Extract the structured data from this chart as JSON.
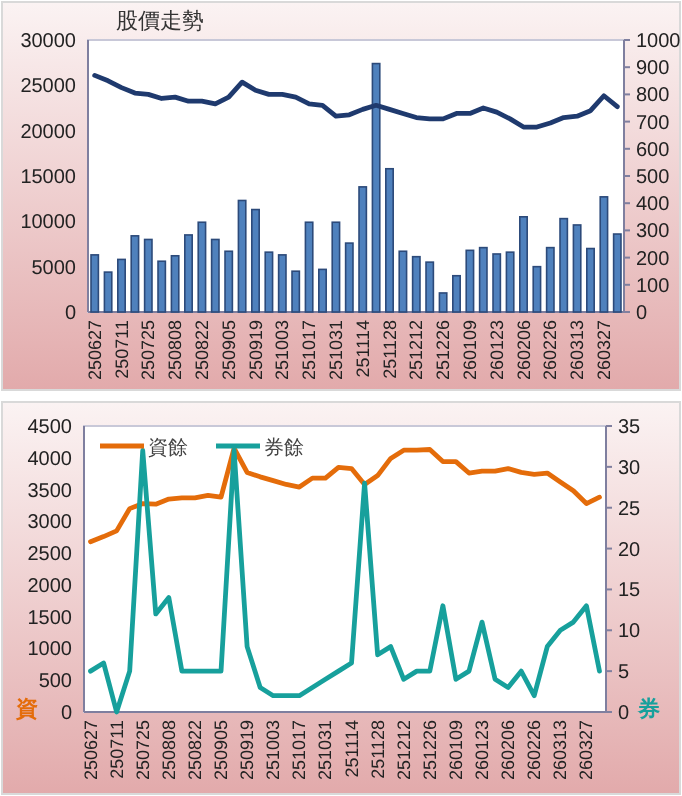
{
  "chart_data": [
    {
      "type": "bar",
      "title": "股價走勢",
      "categories": [
        "250627",
        null,
        "250711",
        null,
        "250725",
        null,
        "250808",
        null,
        "250822",
        null,
        "250905",
        null,
        "250919",
        null,
        "251003",
        null,
        "251017",
        null,
        "251031",
        null,
        "251114",
        null,
        "251128",
        null,
        "251212",
        null,
        "251226",
        null,
        "260109",
        null,
        "260123",
        null,
        "260206",
        null,
        "260226",
        null,
        "260313",
        null,
        "260327",
        null
      ],
      "series": [
        {
          "color": "#4f81bd",
          "values": [
            6300,
            4400,
            5800,
            8400,
            8000,
            5600,
            6200,
            8500,
            9900,
            8000,
            6700,
            12300,
            11300,
            6600,
            6300,
            4500,
            9900,
            4700,
            9900,
            7600,
            13800,
            27400,
            15800,
            6700,
            6100,
            5500,
            2100,
            4000,
            6800,
            7100,
            6400,
            6600,
            10500,
            5000,
            7100,
            10300,
            9600,
            7000,
            12700,
            8600
          ]
        },
        {
          "type": "line",
          "axis": "y2",
          "color": "#1f3a6e",
          "values": [
            870,
            850,
            825,
            805,
            800,
            785,
            790,
            775,
            775,
            765,
            790,
            845,
            815,
            800,
            800,
            790,
            765,
            760,
            720,
            725,
            745,
            760,
            745,
            730,
            715,
            710,
            710,
            730,
            730,
            750,
            735,
            710,
            680,
            680,
            695,
            715,
            720,
            740,
            795,
            755
          ]
        }
      ],
      "ylim": [
        0,
        30000
      ],
      "yticks": [
        0,
        5000,
        10000,
        15000,
        20000,
        25000,
        30000
      ],
      "y2lim": [
        0,
        1000
      ],
      "y2ticks": [
        0,
        100,
        200,
        300,
        400,
        500,
        600,
        700,
        800,
        900,
        1000
      ]
    },
    {
      "type": "line",
      "ylabel": "資",
      "y2label": "券",
      "legend": "top left",
      "categories": [
        "250627",
        null,
        "250711",
        null,
        "250725",
        null,
        "250808",
        null,
        "250822",
        null,
        "250905",
        null,
        "250919",
        null,
        "251003",
        null,
        "251017",
        null,
        "251031",
        null,
        "251114",
        null,
        "251128",
        null,
        "251212",
        null,
        "251226",
        null,
        "260109",
        null,
        "260123",
        null,
        "260206",
        null,
        "260226",
        null,
        "260313",
        null,
        "260327",
        null
      ],
      "series": [
        {
          "name": "資餘",
          "color": "#e46c0a",
          "values": [
            2680,
            2760,
            2850,
            3200,
            3280,
            3270,
            3350,
            3370,
            3370,
            3410,
            3380,
            4150,
            3770,
            3700,
            3640,
            3580,
            3540,
            3680,
            3680,
            3850,
            3830,
            3580,
            3720,
            3990,
            4120,
            4120,
            4130,
            3940,
            3940,
            3760,
            3790,
            3790,
            3830,
            3770,
            3740,
            3760,
            3620,
            3480,
            3280,
            3380
          ]
        },
        {
          "name": "券餘",
          "axis": "y2",
          "color": "#17a09c",
          "values": [
            5,
            6,
            0,
            5,
            32,
            12,
            14,
            5,
            5,
            5,
            5,
            32,
            8,
            3,
            2,
            2,
            2,
            3,
            4,
            5,
            6,
            28,
            7,
            8,
            4,
            5,
            5,
            13,
            4,
            5,
            11,
            4,
            3,
            5,
            2,
            8,
            10,
            11,
            13,
            5
          ]
        }
      ],
      "ylim": [
        0,
        4500
      ],
      "yticks": [
        0,
        500,
        1000,
        1500,
        2000,
        2500,
        3000,
        3500,
        4000,
        4500
      ],
      "y2lim": [
        0,
        35
      ],
      "y2ticks": [
        0,
        5,
        10,
        15,
        20,
        25,
        30,
        35
      ]
    }
  ]
}
